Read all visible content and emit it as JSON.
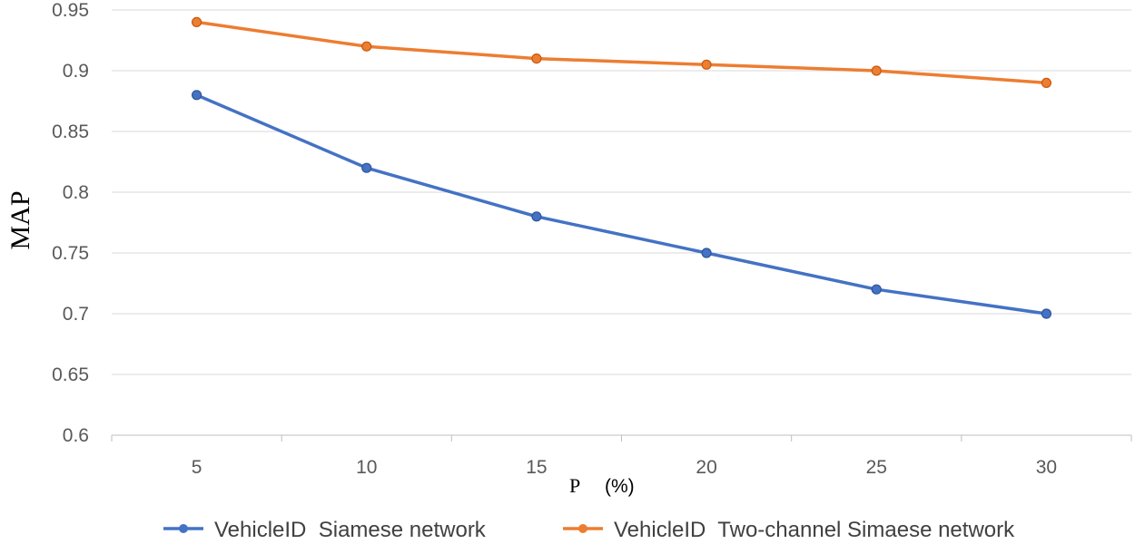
{
  "chart_data": {
    "type": "line",
    "title": "",
    "xlabel": "P",
    "xlabel_unit": "(%)",
    "ylabel": "MAP",
    "x": [
      5,
      10,
      15,
      20,
      25,
      30
    ],
    "x_tick_labels": [
      "5",
      "10",
      "15",
      "20",
      "25",
      "30"
    ],
    "ylim": [
      0.6,
      0.95
    ],
    "y_ticks": [
      0.6,
      0.65,
      0.7,
      0.75,
      0.8,
      0.85,
      0.9,
      0.95
    ],
    "y_tick_labels": [
      "0.6",
      "0.65",
      "0.7",
      "0.75",
      "0.8",
      "0.85",
      "0.9",
      "0.95"
    ],
    "grid": true,
    "legend_position": "bottom",
    "series": [
      {
        "name": "VehicleID  Siamese network",
        "color": "#4472c4",
        "values": [
          0.88,
          0.82,
          0.78,
          0.75,
          0.72,
          0.7
        ]
      },
      {
        "name": "VehicleID  Two-channel Simaese network",
        "color": "#ed7d31",
        "values": [
          0.94,
          0.92,
          0.91,
          0.905,
          0.9,
          0.89
        ]
      }
    ]
  }
}
